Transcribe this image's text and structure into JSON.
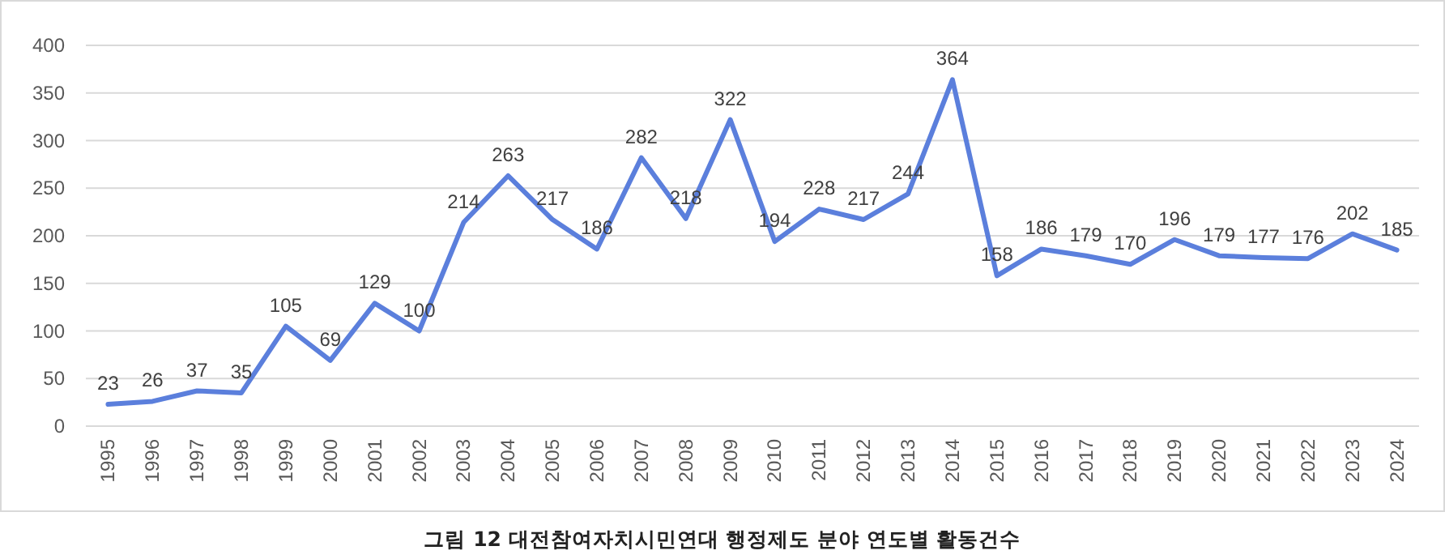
{
  "chart_data": {
    "type": "line",
    "categories": [
      "1995",
      "1996",
      "1997",
      "1998",
      "1999",
      "2000",
      "2001",
      "2002",
      "2003",
      "2004",
      "2005",
      "2006",
      "2007",
      "2008",
      "2009",
      "2010",
      "2011",
      "2012",
      "2013",
      "2014",
      "2015",
      "2016",
      "2017",
      "2018",
      "2019",
      "2020",
      "2021",
      "2022",
      "2023",
      "2024"
    ],
    "values": [
      23,
      26,
      37,
      35,
      105,
      69,
      129,
      100,
      214,
      263,
      217,
      186,
      282,
      218,
      322,
      194,
      228,
      217,
      244,
      364,
      158,
      186,
      179,
      170,
      196,
      179,
      177,
      176,
      202,
      185
    ],
    "color": "#5b7fdc",
    "ylim": [
      0,
      400
    ],
    "yticks": [
      0,
      50,
      100,
      150,
      200,
      250,
      300,
      350,
      400
    ],
    "grid": "y",
    "data_labels": true,
    "annotations": [
      "그림 12 대전참여자치시민연대 행정제도 분야 연도별 활동건수"
    ]
  }
}
